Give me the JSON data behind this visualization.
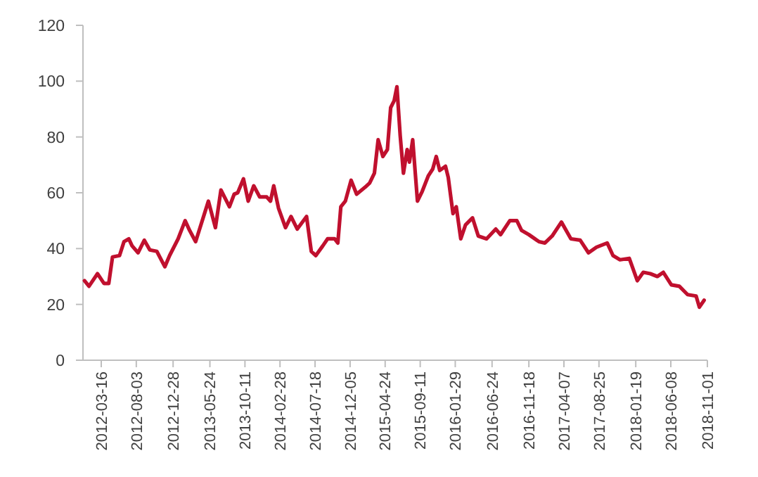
{
  "chart_data": {
    "type": "line",
    "xlim": [
      "2012-01-03",
      "2018-11-01"
    ],
    "ylim": [
      0,
      120
    ],
    "yticks": [
      0,
      20,
      40,
      60,
      80,
      100,
      120
    ],
    "xticks": [
      "2012-03-16",
      "2012-08-03",
      "2012-12-28",
      "2013-05-24",
      "2013-10-11",
      "2014-02-28",
      "2014-07-18",
      "2014-12-05",
      "2015-04-24",
      "2015-09-11",
      "2016-01-29",
      "2016-06-24",
      "2016-11-18",
      "2017-04-07",
      "2017-08-25",
      "2018-01-19",
      "2018-06-08",
      "2018-11-01"
    ],
    "grid": false,
    "marker": "none",
    "line_style": "solid",
    "series": [
      {
        "color": "#c0102e",
        "x": [
          "2012-01-09",
          "2012-01-27",
          "2012-03-01",
          "2012-03-27",
          "2012-04-15",
          "2012-04-30",
          "2012-05-28",
          "2012-06-15",
          "2012-07-04",
          "2012-07-17",
          "2012-08-10",
          "2012-09-04",
          "2012-09-26",
          "2012-10-24",
          "2012-11-25",
          "2012-12-14",
          "2013-01-17",
          "2013-02-14",
          "2013-03-04",
          "2013-03-28",
          "2013-05-18",
          "2013-06-15",
          "2013-07-07",
          "2013-08-10",
          "2013-08-29",
          "2013-09-12",
          "2013-10-05",
          "2013-10-24",
          "2013-11-15",
          "2013-12-09",
          "2014-01-06",
          "2014-01-21",
          "2014-02-03",
          "2014-02-22",
          "2014-03-22",
          "2014-04-13",
          "2014-05-08",
          "2014-06-14",
          "2014-07-03",
          "2014-07-21",
          "2014-08-18",
          "2014-09-06",
          "2014-10-04",
          "2014-10-17",
          "2014-10-29",
          "2014-11-16",
          "2014-12-09",
          "2014-12-31",
          "2015-02-03",
          "2015-02-21",
          "2015-03-12",
          "2015-03-27",
          "2015-04-15",
          "2015-05-03",
          "2015-05-16",
          "2015-05-30",
          "2015-06-10",
          "2015-06-23",
          "2015-07-06",
          "2015-07-21",
          "2015-07-30",
          "2015-08-12",
          "2015-08-31",
          "2015-09-19",
          "2015-10-13",
          "2015-10-31",
          "2015-11-14",
          "2015-11-28",
          "2015-12-21",
          "2016-01-01",
          "2016-01-20",
          "2016-02-02",
          "2016-02-20",
          "2016-03-10",
          "2016-04-07",
          "2016-04-30",
          "2016-06-02",
          "2016-07-09",
          "2016-07-28",
          "2016-09-03",
          "2016-10-01",
          "2016-10-20",
          "2016-11-18",
          "2016-12-28",
          "2017-01-21",
          "2017-02-19",
          "2017-03-28",
          "2017-05-05",
          "2017-06-11",
          "2017-07-14",
          "2017-08-15",
          "2017-09-27",
          "2017-10-20",
          "2017-11-17",
          "2017-12-24",
          "2018-01-25",
          "2018-02-18",
          "2018-03-18",
          "2018-04-15",
          "2018-05-09",
          "2018-06-10",
          "2018-07-12",
          "2018-08-14",
          "2018-09-17",
          "2018-09-30",
          "2018-10-19"
        ],
        "values": [
          28.5,
          26.5,
          31,
          27.5,
          27.5,
          37,
          37.5,
          42.5,
          43.5,
          41,
          38.5,
          43,
          39.5,
          39,
          33.5,
          37.5,
          43.5,
          50,
          46.5,
          42.5,
          57,
          47.5,
          61,
          55,
          59.5,
          60,
          65,
          57,
          62.5,
          58.5,
          58.5,
          57,
          62.5,
          54.5,
          47.5,
          51.5,
          47,
          51.5,
          39,
          37.5,
          41,
          43.5,
          43.5,
          42,
          55,
          57,
          64.5,
          59.5,
          62,
          63.5,
          67,
          79,
          73,
          75.5,
          90.5,
          93,
          98,
          80.5,
          67,
          75.5,
          71,
          79,
          57,
          60.5,
          66,
          68.5,
          73,
          68,
          69.5,
          65.5,
          52.5,
          55,
          43.5,
          48.5,
          51,
          44.5,
          43.5,
          47,
          45,
          50,
          50,
          46.5,
          45,
          42.5,
          42,
          44.5,
          49.5,
          43.5,
          43,
          38.5,
          40.5,
          42,
          37.5,
          36,
          36.5,
          28.5,
          31.5,
          31,
          30,
          31.5,
          27,
          26.5,
          23.5,
          23,
          19,
          21.5
        ]
      }
    ]
  }
}
